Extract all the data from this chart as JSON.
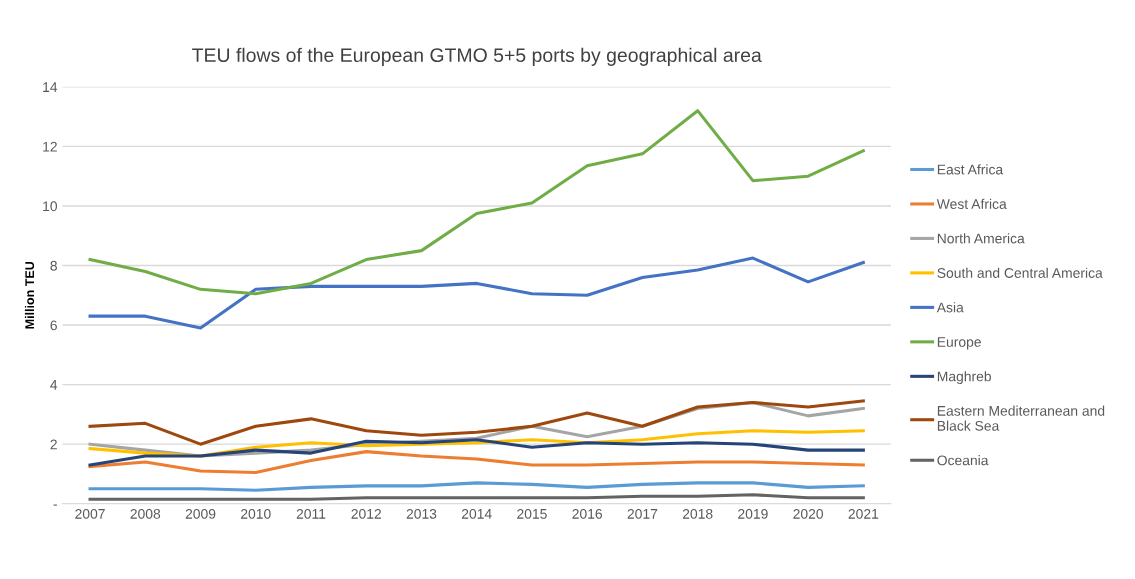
{
  "chart_data": {
    "type": "line",
    "title": "TEU flows of the European GTMO 5+5 ports by geographical area",
    "ylabel": "Million TEU",
    "categories": [
      "2007",
      "2008",
      "2009",
      "2010",
      "2011",
      "2012",
      "2013",
      "2014",
      "2015",
      "2016",
      "2017",
      "2018",
      "2019",
      "2020",
      "2021"
    ],
    "ylim": [
      0,
      14
    ],
    "yticks": [
      {
        "value": 0,
        "label": "-"
      },
      2,
      4,
      6,
      8,
      10,
      12,
      14
    ],
    "grid": "y",
    "legend": "right",
    "marker": "none",
    "line_style": "solid",
    "series": [
      {
        "name": "East Africa",
        "color": "#5b9bd5",
        "values": [
          0.5,
          0.5,
          0.5,
          0.45,
          0.55,
          0.6,
          0.6,
          0.7,
          0.65,
          0.55,
          0.65,
          0.7,
          0.7,
          0.55,
          0.6
        ]
      },
      {
        "name": "West Africa",
        "color": "#ed7d31",
        "values": [
          1.25,
          1.4,
          1.1,
          1.05,
          1.45,
          1.75,
          1.6,
          1.5,
          1.3,
          1.3,
          1.35,
          1.4,
          1.4,
          1.35,
          1.3
        ]
      },
      {
        "name": "North America",
        "color": "#a5a5a5",
        "values": [
          2.0,
          1.8,
          1.6,
          1.7,
          1.8,
          2.0,
          2.1,
          2.2,
          2.6,
          2.25,
          2.6,
          3.2,
          3.4,
          2.95,
          3.2
        ]
      },
      {
        "name": "South and Central America",
        "color": "#ffc000",
        "values": [
          1.85,
          1.7,
          1.6,
          1.9,
          2.05,
          1.95,
          2.0,
          2.05,
          2.15,
          2.05,
          2.15,
          2.35,
          2.45,
          2.4,
          2.45
        ]
      },
      {
        "name": "Asia",
        "color": "#4472c4",
        "values": [
          6.3,
          6.3,
          5.9,
          7.2,
          7.3,
          7.3,
          7.3,
          7.4,
          7.05,
          7.0,
          7.6,
          7.85,
          8.25,
          7.45,
          8.1
        ]
      },
      {
        "name": "Europe",
        "color": "#70ad47",
        "values": [
          8.2,
          7.8,
          7.2,
          7.05,
          7.4,
          8.2,
          8.5,
          9.75,
          10.1,
          11.35,
          11.75,
          13.2,
          10.85,
          11.0,
          11.85
        ]
      },
      {
        "name": "Maghreb",
        "color": "#264478",
        "values": [
          1.3,
          1.6,
          1.6,
          1.8,
          1.7,
          2.1,
          2.05,
          2.15,
          1.9,
          2.05,
          2.0,
          2.05,
          2.0,
          1.8,
          1.8
        ]
      },
      {
        "name": "Eastern Mediterranean and Black Sea",
        "color": "#9e480e",
        "values": [
          2.6,
          2.7,
          2.0,
          2.6,
          2.85,
          2.45,
          2.3,
          2.4,
          2.6,
          3.05,
          2.6,
          3.25,
          3.4,
          3.25,
          3.45
        ]
      },
      {
        "name": "Oceania",
        "color": "#636363",
        "values": [
          0.15,
          0.15,
          0.15,
          0.15,
          0.15,
          0.2,
          0.2,
          0.2,
          0.2,
          0.2,
          0.25,
          0.25,
          0.3,
          0.2,
          0.2
        ]
      }
    ]
  }
}
